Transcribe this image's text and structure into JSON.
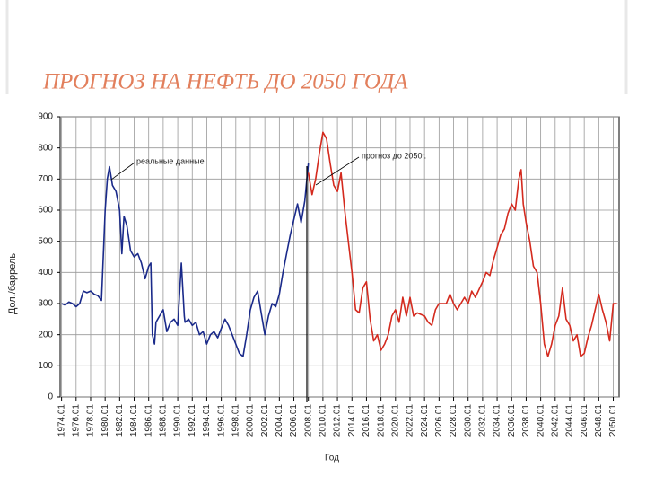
{
  "chart_data": {
    "type": "line",
    "title": "ПРОГНОЗ НА НЕФТЬ ДО 2050 ГОДА",
    "x_label": "Год",
    "y_label": "Дол./баррель",
    "xlim": [
      1973.8,
      2050.8
    ],
    "ylim": [
      0,
      900
    ],
    "yticks": [
      0,
      100,
      200,
      300,
      400,
      500,
      600,
      700,
      800,
      900
    ],
    "xticks": [
      {
        "value": 1974,
        "label": "1974.01"
      },
      {
        "value": 1976,
        "label": "1976.01"
      },
      {
        "value": 1978,
        "label": "1978.01"
      },
      {
        "value": 1980,
        "label": "1980.01"
      },
      {
        "value": 1982,
        "label": "1982.01"
      },
      {
        "value": 1984,
        "label": "1984.01"
      },
      {
        "value": 1986,
        "label": "1986.01"
      },
      {
        "value": 1988,
        "label": "1988.01"
      },
      {
        "value": 1990,
        "label": "1990.01"
      },
      {
        "value": 1992,
        "label": "1992.01"
      },
      {
        "value": 1994,
        "label": "1994.01"
      },
      {
        "value": 1996,
        "label": "1996.01"
      },
      {
        "value": 1998,
        "label": "1998.01"
      },
      {
        "value": 2000,
        "label": "2000.01"
      },
      {
        "value": 2002,
        "label": "2002.01"
      },
      {
        "value": 2004,
        "label": "2004.01"
      },
      {
        "value": 2006,
        "label": "2006.01"
      },
      {
        "value": 2008,
        "label": "2008.01"
      },
      {
        "value": 2010,
        "label": "2010.01"
      },
      {
        "value": 2012,
        "label": "2012.01"
      },
      {
        "value": 2014,
        "label": "2014.01"
      },
      {
        "value": 2016,
        "label": "2016.01"
      },
      {
        "value": 2018,
        "label": "2018.01"
      },
      {
        "value": 2020,
        "label": "2020.01"
      },
      {
        "value": 2022,
        "label": "2022.01"
      },
      {
        "value": 2024,
        "label": "2024.01"
      },
      {
        "value": 2026,
        "label": "2026.01"
      },
      {
        "value": 2028,
        "label": "2028.01"
      },
      {
        "value": 2030,
        "label": "2030.01"
      },
      {
        "value": 2032,
        "label": "2032.01"
      },
      {
        "value": 2034,
        "label": "2034.01"
      },
      {
        "value": 2036,
        "label": "2036.01"
      },
      {
        "value": 2038,
        "label": "2038.01"
      },
      {
        "value": 2040,
        "label": "2040.01"
      },
      {
        "value": 2042,
        "label": "2042.01"
      },
      {
        "value": 2044,
        "label": "2044.01"
      },
      {
        "value": 2046,
        "label": "2046.01"
      },
      {
        "value": 2048,
        "label": "2048.01"
      },
      {
        "value": 2050,
        "label": "2050.01"
      }
    ],
    "grid": true,
    "series": [
      {
        "name": "реальные данные",
        "color": "#1a2a8a",
        "x": [
          1974,
          1974.5,
          1975,
          1975.5,
          1976,
          1976.5,
          1977,
          1977.5,
          1978,
          1978.5,
          1979,
          1979.5,
          1980,
          1980.3,
          1980.6,
          1981,
          1981.5,
          1982,
          1982.3,
          1982.6,
          1983,
          1983.5,
          1984,
          1984.5,
          1985,
          1985.5,
          1986,
          1986.3,
          1986.5,
          1986.8,
          1987,
          1987.5,
          1988,
          1988.5,
          1989,
          1989.5,
          1990,
          1990.5,
          1990.9,
          1991,
          1991.5,
          1992,
          1992.5,
          1993,
          1993.5,
          1994,
          1994.5,
          1995,
          1995.5,
          1996,
          1996.5,
          1997,
          1997.5,
          1998,
          1998.5,
          1999,
          1999.5,
          2000,
          2000.5,
          2001,
          2001.5,
          2002,
          2002.5,
          2003,
          2003.5,
          2004,
          2004.5,
          2005,
          2005.5,
          2006,
          2006.5,
          2007,
          2007.5,
          2008
        ],
        "values": [
          300,
          295,
          305,
          300,
          290,
          300,
          340,
          335,
          340,
          330,
          325,
          310,
          600,
          700,
          740,
          680,
          660,
          600,
          460,
          580,
          550,
          470,
          450,
          460,
          430,
          380,
          420,
          430,
          200,
          170,
          240,
          260,
          280,
          210,
          240,
          250,
          230,
          430,
          260,
          240,
          250,
          230,
          240,
          200,
          210,
          170,
          200,
          210,
          190,
          220,
          250,
          230,
          200,
          170,
          140,
          130,
          200,
          280,
          320,
          340,
          270,
          200,
          260,
          300,
          290,
          330,
          400,
          460,
          520,
          570,
          620,
          560,
          630,
          750
        ]
      },
      {
        "name": "прогноз до 2050г.",
        "color": "#d42a1e",
        "x": [
          2008,
          2008.5,
          2009,
          2009.5,
          2010,
          2010.5,
          2011,
          2011.5,
          2012,
          2012.5,
          2013,
          2013.5,
          2014,
          2014.5,
          2015,
          2015.5,
          2016,
          2016.5,
          2017,
          2017.5,
          2018,
          2018.5,
          2019,
          2019.5,
          2020,
          2020.5,
          2021,
          2021.5,
          2022,
          2022.5,
          2023,
          2024,
          2024.5,
          2025,
          2025.5,
          2026,
          2027,
          2027.5,
          2028,
          2028.5,
          2029,
          2029.5,
          2030,
          2030.5,
          2031,
          2032,
          2032.5,
          2033,
          2033.5,
          2034,
          2034.5,
          2035,
          2035.5,
          2036,
          2036.5,
          2037,
          2037.3,
          2037.6,
          2038,
          2038.5,
          2039,
          2039.5,
          2040,
          2040.5,
          2041,
          2041.5,
          2042,
          2042.5,
          2043,
          2043.5,
          2044,
          2044.5,
          2045,
          2045.5,
          2046,
          2046.5,
          2047,
          2047.5,
          2048,
          2048.5,
          2049,
          2049.5,
          2050,
          2050.5
        ],
        "values": [
          720,
          650,
          700,
          780,
          850,
          830,
          750,
          680,
          660,
          720,
          600,
          500,
          400,
          280,
          270,
          350,
          370,
          250,
          180,
          200,
          150,
          170,
          200,
          260,
          280,
          240,
          320,
          260,
          320,
          260,
          270,
          260,
          240,
          230,
          280,
          300,
          300,
          330,
          300,
          280,
          300,
          320,
          300,
          340,
          320,
          370,
          400,
          390,
          440,
          480,
          520,
          540,
          590,
          620,
          600,
          700,
          730,
          620,
          560,
          500,
          420,
          400,
          300,
          170,
          130,
          170,
          230,
          260,
          350,
          250,
          230,
          180,
          200,
          130,
          140,
          190,
          230,
          280,
          330,
          280,
          240,
          180,
          300,
          300
        ]
      }
    ]
  }
}
